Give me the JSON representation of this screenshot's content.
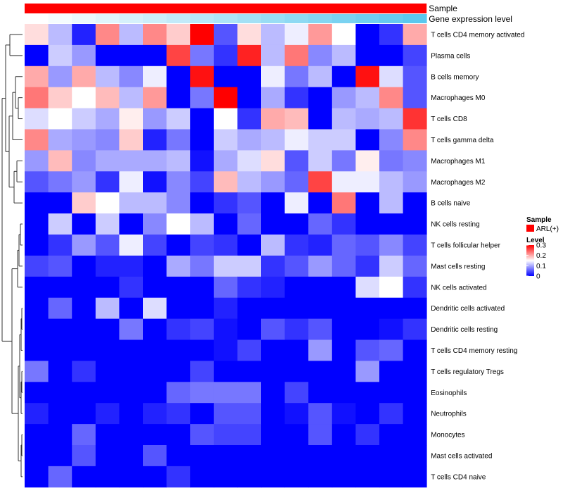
{
  "chart_data": {
    "type": "heatmap",
    "title": "",
    "annotations": [
      {
        "name": "Sample",
        "kind": "categorical",
        "value": "ARL(+)",
        "color": "#ff0000"
      },
      {
        "name": "Gene expression level",
        "kind": "gradient",
        "colors": [
          "#ffffff",
          "#5bc8ee"
        ]
      }
    ],
    "columns": 17,
    "rows": [
      "T cells CD4 memory activated",
      "Plasma cells",
      "B cells memory",
      "Macrophages M0",
      "T cells CD8",
      "T cells gamma delta",
      "Macrophages M1",
      "Macrophages M2",
      "B cells naive",
      "NK cells resting",
      "T cells follicular helper",
      "Mast cells resting",
      "NK cells activated",
      "Dendritic cells activated",
      "Dendritic cells resting",
      "T cells CD4 memory resting",
      "T cells regulatory  Tregs",
      "Eosinophils",
      "Neutrophils",
      "Monocytes",
      "Mast cells activated",
      "T cells CD4 naive"
    ],
    "values": [
      [
        0.17,
        0.11,
        0.02,
        0.22,
        0.11,
        0.22,
        0.18,
        0.3,
        0.05,
        0.17,
        0.11,
        0.14,
        0.21,
        0.15,
        0.0,
        0.03,
        0.2
      ],
      [
        0.0,
        0.12,
        0.09,
        0.0,
        0.0,
        0.0,
        0.26,
        0.07,
        0.03,
        0.28,
        0.11,
        0.23,
        0.08,
        0.11,
        0.0,
        0.0,
        0.04
      ],
      [
        0.2,
        0.09,
        0.2,
        0.11,
        0.08,
        0.14,
        0.0,
        0.29,
        0.0,
        0.0,
        0.14,
        0.07,
        0.11,
        0.0,
        0.29,
        0.13,
        0.05
      ],
      [
        0.23,
        0.18,
        0.15,
        0.19,
        0.11,
        0.21,
        0.0,
        0.07,
        0.3,
        0.0,
        0.1,
        0.03,
        0.0,
        0.09,
        0.11,
        0.22,
        0.05
      ],
      [
        0.13,
        0.15,
        0.12,
        0.1,
        0.16,
        0.09,
        0.12,
        0.0,
        0.15,
        0.03,
        0.2,
        0.19,
        0.0,
        0.11,
        0.1,
        0.11,
        0.27
      ],
      [
        0.22,
        0.1,
        0.09,
        0.08,
        0.18,
        0.02,
        0.07,
        0.0,
        0.12,
        0.1,
        0.11,
        0.14,
        0.12,
        0.12,
        0.0,
        0.08,
        0.22
      ],
      [
        0.09,
        0.19,
        0.08,
        0.1,
        0.1,
        0.1,
        0.11,
        0.01,
        0.1,
        0.13,
        0.17,
        0.05,
        0.12,
        0.07,
        0.16,
        0.07,
        0.08
      ],
      [
        0.05,
        0.07,
        0.09,
        0.03,
        0.14,
        0.01,
        0.08,
        0.04,
        0.19,
        0.11,
        0.09,
        0.06,
        0.26,
        0.14,
        0.14,
        0.11,
        0.09
      ],
      [
        0.0,
        0.0,
        0.18,
        0.15,
        0.11,
        0.11,
        0.08,
        0.0,
        0.03,
        0.05,
        0.0,
        0.14,
        0.0,
        0.23,
        0.0,
        0.11,
        0.0
      ],
      [
        0.0,
        0.12,
        0.0,
        0.12,
        0.0,
        0.08,
        0.15,
        0.11,
        0.0,
        0.06,
        0.0,
        0.0,
        0.06,
        0.03,
        0.0,
        0.0,
        0.0
      ],
      [
        0.0,
        0.03,
        0.09,
        0.05,
        0.14,
        0.04,
        0.0,
        0.04,
        0.03,
        0.0,
        0.11,
        0.03,
        0.02,
        0.06,
        0.05,
        0.08,
        0.04
      ],
      [
        0.04,
        0.05,
        0.0,
        0.02,
        0.02,
        0.0,
        0.1,
        0.07,
        0.12,
        0.12,
        0.03,
        0.05,
        0.09,
        0.06,
        0.03,
        0.12,
        0.06
      ],
      [
        0.0,
        0.0,
        0.0,
        0.0,
        0.03,
        0.0,
        0.0,
        0.0,
        0.06,
        0.03,
        0.02,
        0.0,
        0.0,
        0.0,
        0.13,
        0.15,
        0.03
      ],
      [
        0.0,
        0.06,
        0.0,
        0.11,
        0.0,
        0.13,
        0.0,
        0.0,
        0.02,
        0.0,
        0.0,
        0.0,
        0.0,
        0.0,
        0.0,
        0.0,
        0.0
      ],
      [
        0.0,
        0.0,
        0.0,
        0.0,
        0.07,
        0.0,
        0.03,
        0.04,
        0.01,
        0.0,
        0.05,
        0.03,
        0.05,
        0.0,
        0.0,
        0.01,
        0.03
      ],
      [
        0.0,
        0.0,
        0.0,
        0.0,
        0.0,
        0.0,
        0.0,
        0.0,
        0.01,
        0.04,
        0.0,
        0.0,
        0.09,
        0.0,
        0.05,
        0.06,
        0.0
      ],
      [
        0.07,
        0.0,
        0.03,
        0.0,
        0.0,
        0.0,
        0.0,
        0.04,
        0.0,
        0.0,
        0.0,
        0.0,
        0.0,
        0.0,
        0.09,
        0.0,
        0.0
      ],
      [
        0.0,
        0.0,
        0.0,
        0.0,
        0.0,
        0.0,
        0.06,
        0.07,
        0.07,
        0.07,
        0.0,
        0.04,
        0.0,
        0.0,
        0.0,
        0.0,
        0.0
      ],
      [
        0.02,
        0.0,
        0.0,
        0.02,
        0.0,
        0.02,
        0.03,
        0.0,
        0.05,
        0.05,
        0.0,
        0.01,
        0.05,
        0.01,
        0.0,
        0.03,
        0.0
      ],
      [
        0.0,
        0.0,
        0.06,
        0.0,
        0.0,
        0.0,
        0.0,
        0.05,
        0.04,
        0.04,
        0.0,
        0.0,
        0.05,
        0.0,
        0.03,
        0.0,
        0.0
      ],
      [
        0.0,
        0.0,
        0.05,
        0.0,
        0.0,
        0.05,
        0.0,
        0.0,
        0.0,
        0.0,
        0.0,
        0.0,
        0.0,
        0.0,
        0.0,
        0.0,
        0.0
      ],
      [
        0.0,
        0.06,
        0.0,
        0.0,
        0.0,
        0.0,
        0.03,
        0.0,
        0.0,
        0.0,
        0.0,
        0.0,
        0.0,
        0.0,
        0.0,
        0.0,
        0.0
      ]
    ],
    "color_scale": {
      "min": 0,
      "mid": 0.15,
      "max": 0.3,
      "low_color": "#0000ff",
      "mid_color": "#ffffff",
      "high_color": "#ff0000"
    },
    "legend": {
      "sample_title": "Sample",
      "sample_label": "ARL(+)",
      "level_title": "Level",
      "level_ticks": [
        0.3,
        0.2,
        0.1,
        0
      ],
      "level_tick_labels": [
        "0.3",
        "0.2",
        "0.1",
        "0"
      ]
    },
    "dendrogram": "left"
  }
}
